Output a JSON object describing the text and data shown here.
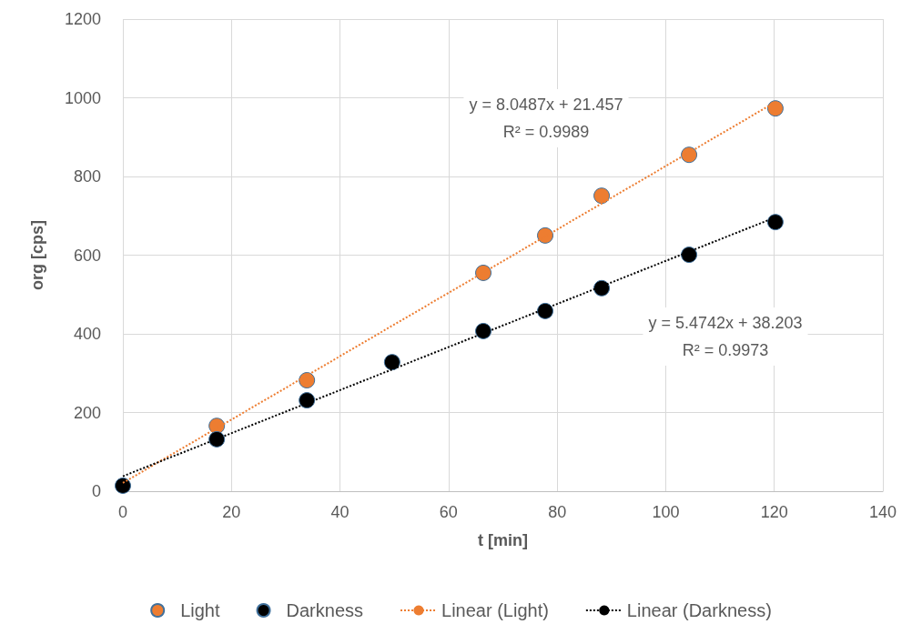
{
  "chart_data": {
    "type": "scatter",
    "xlabel": "t [min]",
    "ylabel": "org [cps]",
    "series": [
      {
        "name": "Light",
        "color": "#ed7d31",
        "x": [
          17.3,
          33.9,
          66.4,
          77.8,
          88.2,
          104.3,
          120.2
        ],
        "values": [
          166,
          282,
          555,
          650,
          751,
          855,
          973
        ]
      },
      {
        "name": "Darkness",
        "color": "#000000",
        "x": [
          0,
          17.3,
          33.9,
          49.6,
          66.4,
          77.8,
          88.2,
          104.3,
          120.2
        ],
        "values": [
          14,
          132,
          231,
          328,
          407,
          458,
          516,
          601,
          684
        ]
      },
      {
        "name": "Linear (Light)",
        "type": "line",
        "color": "#ed7d31",
        "line_style": "dotted",
        "marker": "none",
        "x": [
          0,
          120.2
        ],
        "values": [
          21,
          989
        ]
      },
      {
        "name": "Linear (Darkness)",
        "type": "line",
        "color": "#000000",
        "line_style": "dotted",
        "marker": "none",
        "x": [
          0,
          120.2
        ],
        "values": [
          38,
          696
        ]
      }
    ],
    "annotations": [
      "y = 8.0487x + 21.457\nR² = 0.9989",
      "y = 5.4742x + 38.203\nR² = 0.9973"
    ],
    "xlim": [
      0,
      140
    ],
    "xticks": [
      0,
      20,
      40,
      60,
      80,
      100,
      120,
      140
    ],
    "ylim": [
      0,
      1200
    ],
    "yticks": [
      0,
      200,
      400,
      600,
      800,
      1000,
      1200
    ],
    "grid": true,
    "legend": "bottom",
    "marker": "circle"
  }
}
